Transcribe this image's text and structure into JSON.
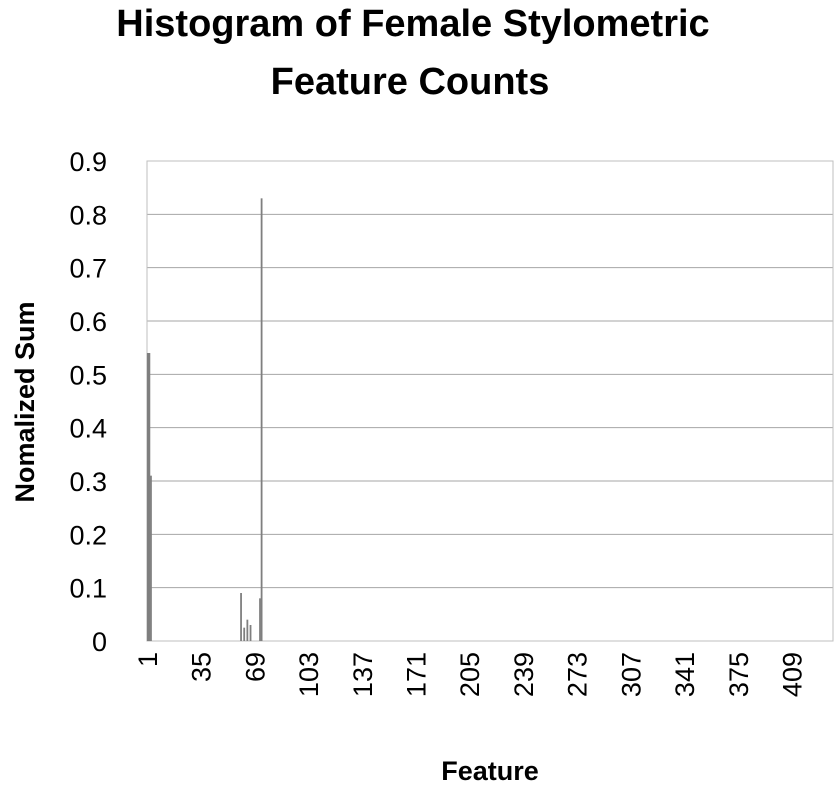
{
  "chart_data": {
    "type": "bar",
    "title_lines": [
      "Histogram of Female Stylometric",
      "Feature Counts"
    ],
    "xlabel": "Feature",
    "ylabel": "Nomalized Sum",
    "ylim": [
      0,
      0.9
    ],
    "y_ticks": [
      "0",
      "0.1",
      "0.2",
      "0.3",
      "0.4",
      "0.5",
      "0.6",
      "0.7",
      "0.8",
      "0.9"
    ],
    "x_ticks": [
      "1",
      "35",
      "69",
      "103",
      "137",
      "171",
      "205",
      "239",
      "273",
      "307",
      "341",
      "375",
      "409"
    ],
    "x_domain": [
      1,
      434
    ],
    "grid": true,
    "legend": "none",
    "bar_color": "#7f7f7f",
    "grid_color": "#a6a6a6",
    "bars": [
      {
        "x": 1,
        "value": 0.54
      },
      {
        "x": 2,
        "value": 0.54
      },
      {
        "x": 3,
        "value": 0.31
      },
      {
        "x": 60,
        "value": 0.09
      },
      {
        "x": 62,
        "value": 0.025
      },
      {
        "x": 64,
        "value": 0.04
      },
      {
        "x": 66,
        "value": 0.03
      },
      {
        "x": 72,
        "value": 0.08
      },
      {
        "x": 73,
        "value": 0.83
      }
    ]
  }
}
